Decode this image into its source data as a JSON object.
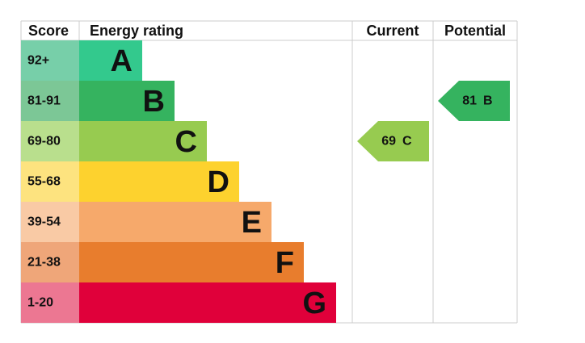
{
  "header": {
    "score": "Score",
    "energy_rating": "Energy rating",
    "current": "Current",
    "potential": "Potential"
  },
  "bands": [
    {
      "score": "92+",
      "rating": "A",
      "color": "#33c98d",
      "score_color": "#77cfa9"
    },
    {
      "score": "81-91",
      "rating": "B",
      "color": "#35b35f",
      "score_color": "#7cc796"
    },
    {
      "score": "69-80",
      "rating": "C",
      "color": "#97cb50",
      "score_color": "#b9df8d"
    },
    {
      "score": "55-68",
      "rating": "D",
      "color": "#fdd22e",
      "score_color": "#fde37f"
    },
    {
      "score": "39-54",
      "rating": "E",
      "color": "#f6a96b",
      "score_color": "#f9caa5"
    },
    {
      "score": "21-38",
      "rating": "F",
      "color": "#e87d2d",
      "score_color": "#efa679"
    },
    {
      "score": "1-20",
      "rating": "G",
      "color": "#e0003a",
      "score_color": "#ec7792"
    }
  ],
  "current": {
    "score": 69,
    "rating": "C"
  },
  "potential": {
    "score": 81,
    "rating": "B"
  }
}
